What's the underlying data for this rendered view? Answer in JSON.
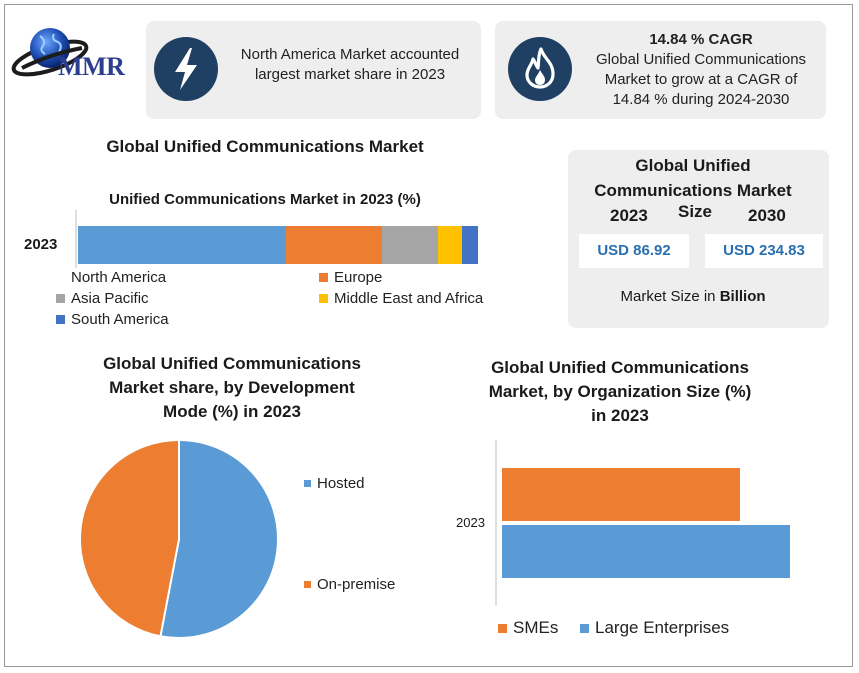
{
  "logo": {
    "text": "MMR"
  },
  "highlights": [
    {
      "icon": "lightning-icon",
      "text_lines": [
        "North America Market accounted",
        "largest market share in 2023"
      ]
    },
    {
      "icon": "flame-icon",
      "heading": "14.84 % CAGR",
      "text_lines": [
        "Global Unified Communications",
        "Market to grow at a CAGR of",
        "14.84 % during 2024-2030"
      ]
    }
  ],
  "main_title": "Global Unified Communications Market",
  "market_size": {
    "title_lines": [
      "Global Unified",
      "Communications Market"
    ],
    "size_word": "Size",
    "year_2023": "2023",
    "year_2030": "2030",
    "value_2023": "USD 86.92",
    "value_2030": "USD 234.83",
    "unit_prefix": "Market Size in ",
    "unit_bold": "Billion"
  },
  "chart_data": [
    {
      "type": "bar",
      "orientation": "horizontal-stacked",
      "title": "Unified Communications Market in 2023 (%)",
      "categories": [
        "2023"
      ],
      "series": [
        {
          "name": "North America",
          "values": [
            52
          ],
          "color": "#5b9bd5"
        },
        {
          "name": "Europe",
          "values": [
            24
          ],
          "color": "#ed7d31"
        },
        {
          "name": "Asia Pacific",
          "values": [
            14
          ],
          "color": "#a5a5a5"
        },
        {
          "name": "Middle East and Africa",
          "values": [
            6
          ],
          "color": "#ffc000"
        },
        {
          "name": "South America",
          "values": [
            4
          ],
          "color": "#4472c4"
        }
      ],
      "xlim": [
        0,
        100
      ],
      "legend": "bottom"
    },
    {
      "type": "pie",
      "title_lines": [
        "Global Unified Communications",
        "Market share, by Development",
        "Mode (%) in 2023"
      ],
      "labels": [
        "Hosted",
        "On-premise"
      ],
      "values": [
        53,
        47
      ],
      "colors": [
        "#5b9bd5",
        "#ed7d31"
      ],
      "legend": "right"
    },
    {
      "type": "bar",
      "orientation": "horizontal",
      "title_lines": [
        "Global Unified Communications",
        "Market, by Organization Size (%)",
        "in 2023"
      ],
      "categories": [
        "2023"
      ],
      "series": [
        {
          "name": "SMEs",
          "values": [
            42
          ],
          "color": "#ed7d31"
        },
        {
          "name": "Large Enterprises",
          "values": [
            55
          ],
          "color": "#5b9bd5"
        }
      ],
      "xlim": [
        0,
        60
      ],
      "legend": "bottom"
    }
  ]
}
